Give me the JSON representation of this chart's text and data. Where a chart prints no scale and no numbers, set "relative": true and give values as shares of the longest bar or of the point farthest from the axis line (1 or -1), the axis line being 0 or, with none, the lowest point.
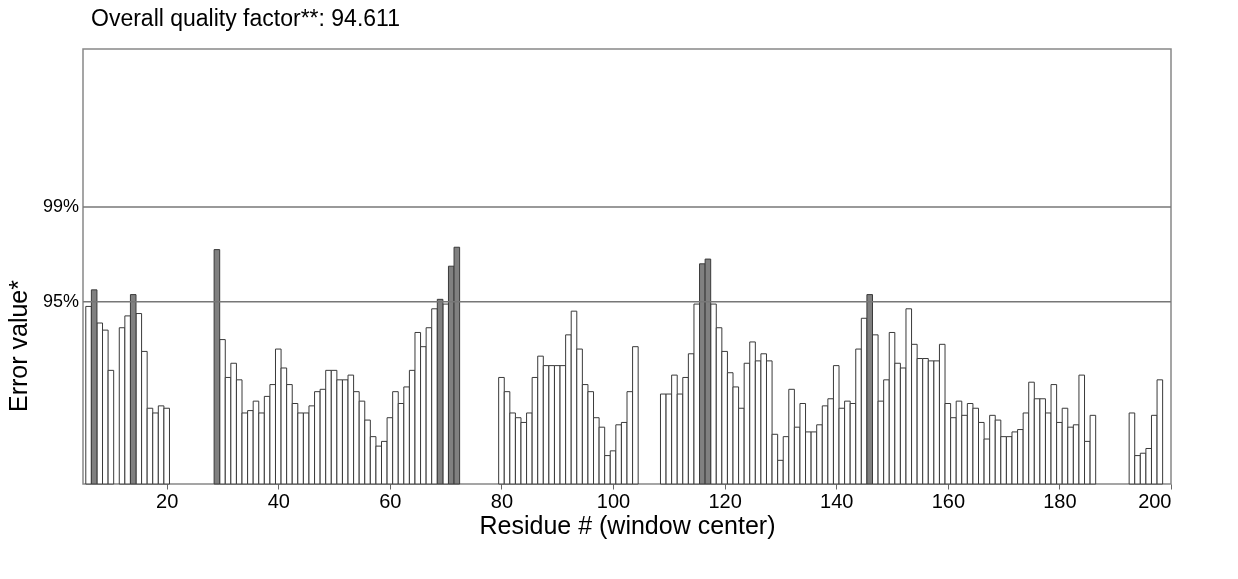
{
  "chart_data": {
    "type": "bar",
    "title": "Overall quality factor**: 94.611",
    "xlabel": "Residue # (window center)",
    "ylabel": "Error value*",
    "relative": true,
    "xlim": [
      5,
      200
    ],
    "xticks": [
      20,
      40,
      60,
      80,
      100,
      120,
      140,
      160,
      180,
      200
    ],
    "ref_lines": [
      {
        "axis": "y",
        "value": 0.77
      },
      {
        "axis": "y",
        "value": 1.17
      }
    ],
    "annotations": [
      "95%",
      "99%"
    ],
    "series": [
      {
        "color": "#ffffff",
        "x": [
          6,
          8,
          9,
          10,
          12,
          13,
          15,
          16,
          17,
          18,
          19,
          20,
          30,
          31,
          32,
          33,
          34,
          35,
          36,
          37,
          38,
          39,
          40,
          41,
          42,
          43,
          44,
          45,
          46,
          47,
          48,
          49,
          50,
          51,
          52,
          53,
          54,
          55,
          56,
          57,
          58,
          59,
          60,
          61,
          62,
          63,
          64,
          65,
          66,
          67,
          68,
          70,
          80,
          81,
          82,
          83,
          84,
          85,
          86,
          87,
          88,
          89,
          90,
          91,
          92,
          93,
          94,
          95,
          96,
          97,
          98,
          99,
          100,
          101,
          102,
          103,
          104,
          109,
          110,
          111,
          112,
          113,
          114,
          115,
          118,
          119,
          120,
          121,
          122,
          123,
          124,
          125,
          126,
          127,
          128,
          129,
          130,
          131,
          132,
          133,
          134,
          135,
          136,
          137,
          138,
          139,
          140,
          141,
          142,
          143,
          144,
          145,
          147,
          148,
          149,
          150,
          151,
          152,
          153,
          154,
          155,
          156,
          157,
          158,
          159,
          160,
          161,
          162,
          163,
          164,
          165,
          166,
          167,
          168,
          169,
          170,
          171,
          172,
          173,
          174,
          175,
          176,
          177,
          178,
          179,
          180,
          181,
          182,
          183,
          184,
          185,
          186,
          193,
          194,
          195,
          196,
          197,
          198
        ],
        "values": [
          0.75,
          0.68,
          0.65,
          0.48,
          0.66,
          0.71,
          0.72,
          0.56,
          0.32,
          0.3,
          0.33,
          0.32,
          0.61,
          0.45,
          0.51,
          0.44,
          0.3,
          0.31,
          0.35,
          0.3,
          0.37,
          0.42,
          0.57,
          0.49,
          0.42,
          0.34,
          0.3,
          0.3,
          0.33,
          0.39,
          0.4,
          0.48,
          0.48,
          0.44,
          0.44,
          0.46,
          0.39,
          0.35,
          0.27,
          0.2,
          0.16,
          0.18,
          0.28,
          0.39,
          0.34,
          0.41,
          0.48,
          0.64,
          0.58,
          0.66,
          0.74,
          0.76,
          0.45,
          0.39,
          0.3,
          0.28,
          0.26,
          0.3,
          0.45,
          0.54,
          0.5,
          0.5,
          0.5,
          0.5,
          0.63,
          0.73,
          0.57,
          0.42,
          0.39,
          0.28,
          0.24,
          0.12,
          0.14,
          0.25,
          0.26,
          0.39,
          0.58,
          0.38,
          0.38,
          0.46,
          0.38,
          0.45,
          0.55,
          0.76,
          0.76,
          0.66,
          0.56,
          0.47,
          0.41,
          0.32,
          0.51,
          0.6,
          0.52,
          0.55,
          0.52,
          0.21,
          0.1,
          0.2,
          0.4,
          0.24,
          0.34,
          0.22,
          0.22,
          0.25,
          0.33,
          0.36,
          0.5,
          0.32,
          0.35,
          0.34,
          0.57,
          0.7,
          0.63,
          0.35,
          0.44,
          0.64,
          0.51,
          0.49,
          0.74,
          0.59,
          0.53,
          0.53,
          0.52,
          0.52,
          0.59,
          0.34,
          0.28,
          0.35,
          0.29,
          0.34,
          0.32,
          0.26,
          0.19,
          0.29,
          0.27,
          0.2,
          0.2,
          0.22,
          0.23,
          0.3,
          0.43,
          0.36,
          0.36,
          0.3,
          0.42,
          0.26,
          0.32,
          0.24,
          0.25,
          0.46,
          0.18,
          0.29,
          0.3,
          0.12,
          0.13,
          0.15,
          0.29,
          0.44
        ]
      },
      {
        "color": "#808080",
        "x": [
          7,
          14,
          29,
          69,
          71,
          72,
          116,
          117,
          146
        ],
        "values": [
          0.82,
          0.8,
          0.99,
          0.78,
          0.92,
          1,
          0.93,
          0.95,
          0.8
        ]
      }
    ]
  }
}
